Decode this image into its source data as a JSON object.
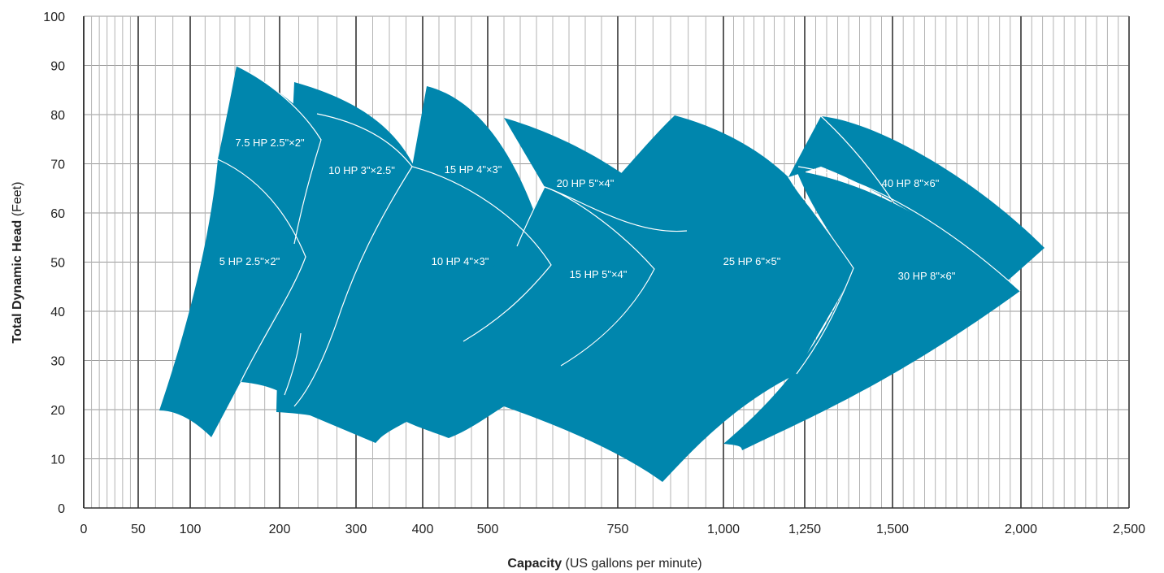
{
  "chart_data": {
    "type": "area",
    "title": "",
    "xlabel": {
      "bold": "Capacity",
      "rest": " (US gallons per minute)"
    },
    "ylabel": {
      "bold": "Total Dynamic Head",
      "rest": " (Feet)"
    },
    "y_range": [
      0,
      100
    ],
    "y_ticks": [
      "0",
      "10",
      "20",
      "30",
      "40",
      "50",
      "60",
      "70",
      "80",
      "90",
      "100"
    ],
    "x_scale": "log",
    "x_ticks": [
      "0",
      "50",
      "100",
      "200",
      "300",
      "400",
      "500",
      "750",
      "1,000",
      "1,250",
      "1,500",
      "2,000",
      "2,500"
    ],
    "grid": true,
    "fill_color": "#0086AD",
    "curve_color": "#ffffff",
    "pumps": [
      {
        "name": "5 HP  2.5\"×2\""
      },
      {
        "name": "7.5 HP  2.5\"×2\""
      },
      {
        "name": "10 HP  3\"×2.5\""
      },
      {
        "name": "10 HP  4\"×3\""
      },
      {
        "name": "15 HP  4\"×3\""
      },
      {
        "name": "15 HP  5\"×4\""
      },
      {
        "name": "20 HP  5\"×4\""
      },
      {
        "name": "25 HP  6\"×5\""
      },
      {
        "name": "30 HP  8\"×6\""
      },
      {
        "name": "40 HP  8\"×6\""
      }
    ]
  }
}
